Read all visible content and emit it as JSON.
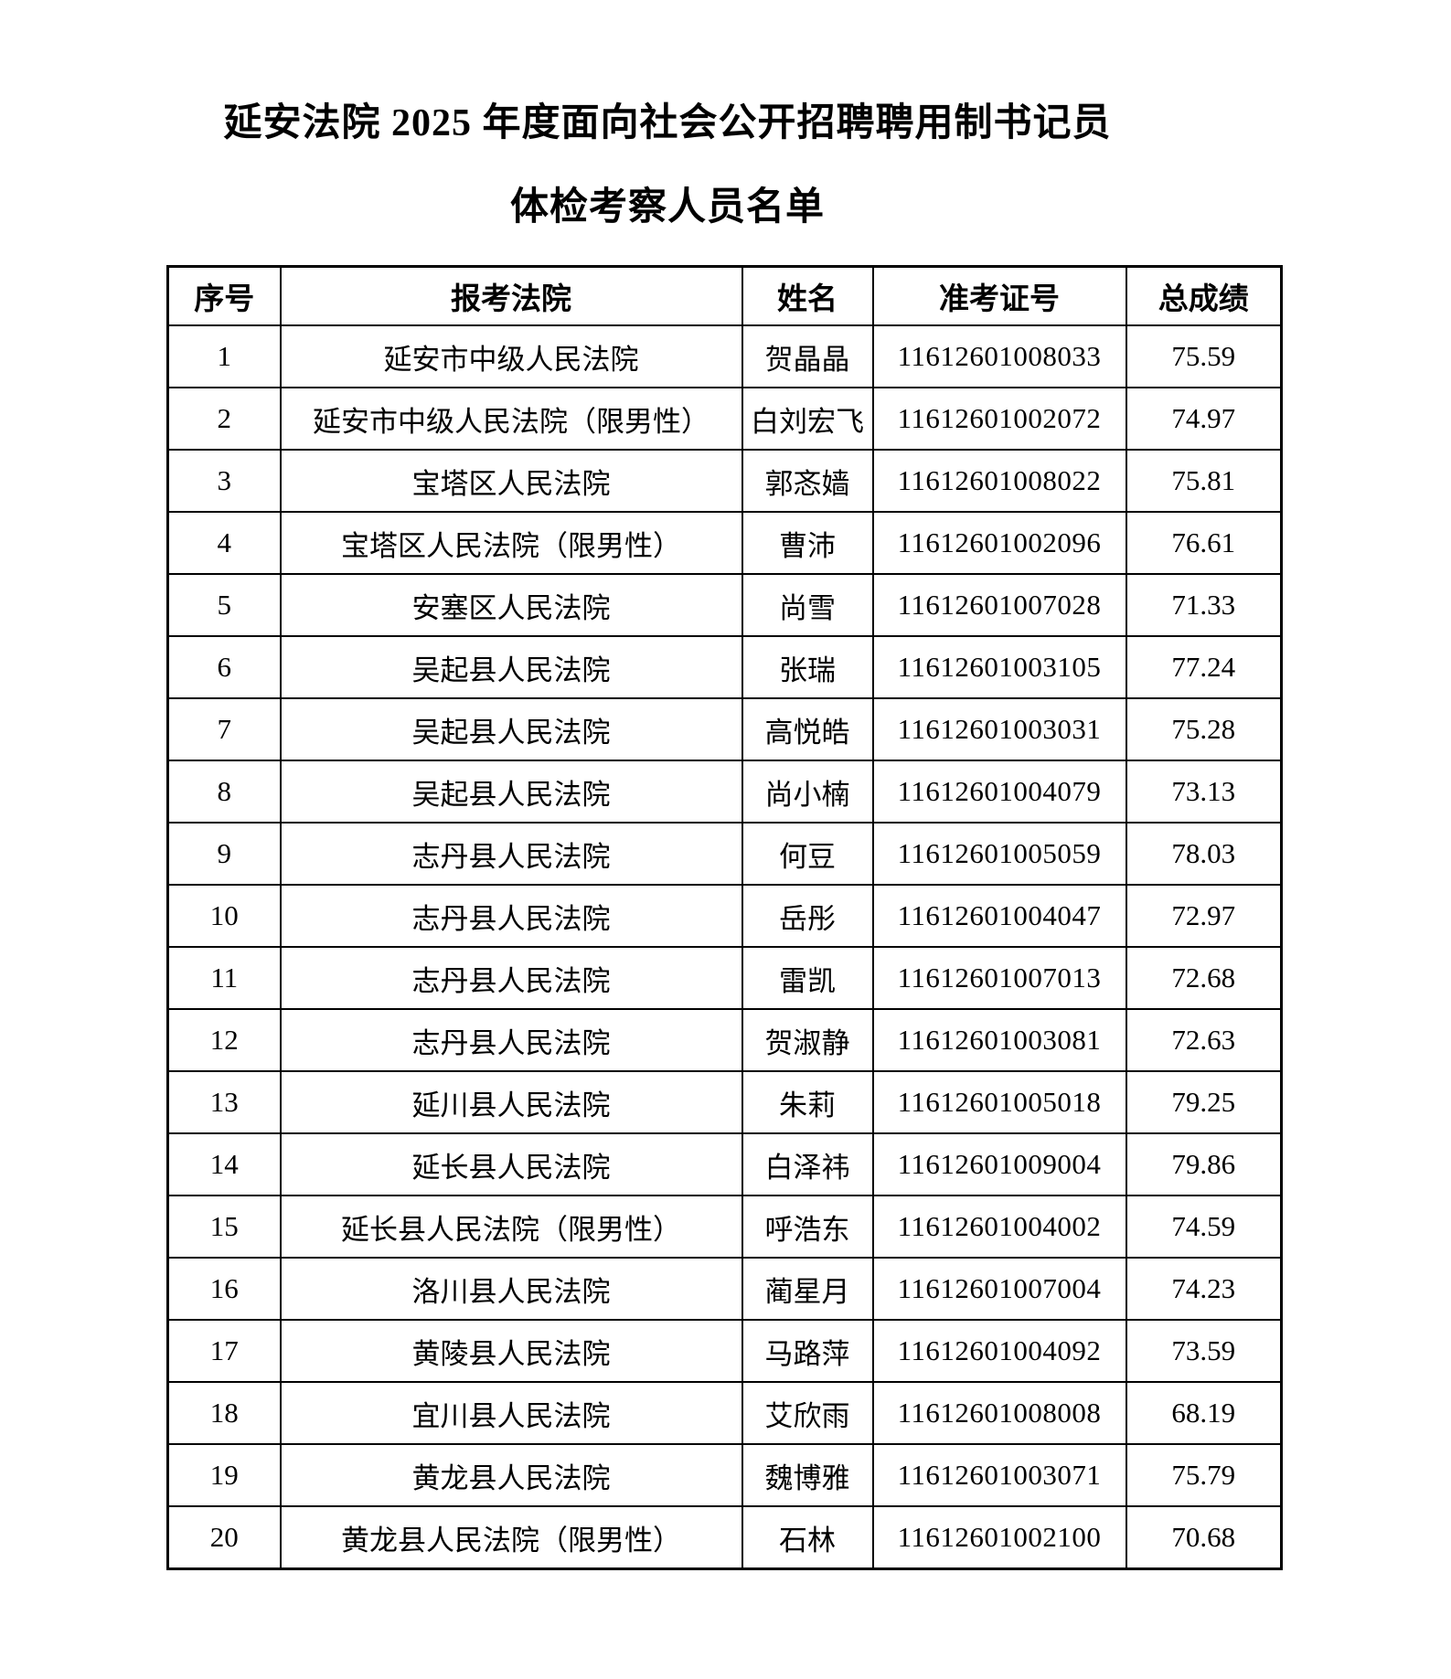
{
  "page": {
    "title_line1": "延安法院 2025 年度面向社会公开招聘聘用制书记员",
    "title_line2": "体检考察人员名单"
  },
  "colors": {
    "text": "#000000",
    "border": "#000000",
    "background": "#ffffff"
  },
  "table": {
    "headers": [
      "序号",
      "报考法院",
      "姓名",
      "准考证号",
      "总成绩"
    ],
    "rows": [
      [
        "1",
        "延安市中级人民法院",
        "贺晶晶",
        "11612601008033",
        "75.59"
      ],
      [
        "2",
        "延安市中级人民法院（限男性）",
        "白刘宏飞",
        "11612601002072",
        "74.97"
      ],
      [
        "3",
        "宝塔区人民法院",
        "郭忞嫱",
        "11612601008022",
        "75.81"
      ],
      [
        "4",
        "宝塔区人民法院（限男性）",
        "曹沛",
        "11612601002096",
        "76.61"
      ],
      [
        "5",
        "安塞区人民法院",
        "尚雪",
        "11612601007028",
        "71.33"
      ],
      [
        "6",
        "吴起县人民法院",
        "张瑞",
        "11612601003105",
        "77.24"
      ],
      [
        "7",
        "吴起县人民法院",
        "高悦皓",
        "11612601003031",
        "75.28"
      ],
      [
        "8",
        "吴起县人民法院",
        "尚小楠",
        "11612601004079",
        "73.13"
      ],
      [
        "9",
        "志丹县人民法院",
        "何豆",
        "11612601005059",
        "78.03"
      ],
      [
        "10",
        "志丹县人民法院",
        "岳彤",
        "11612601004047",
        "72.97"
      ],
      [
        "11",
        "志丹县人民法院",
        "雷凯",
        "11612601007013",
        "72.68"
      ],
      [
        "12",
        "志丹县人民法院",
        "贺淑静",
        "11612601003081",
        "72.63"
      ],
      [
        "13",
        "延川县人民法院",
        "朱莉",
        "11612601005018",
        "79.25"
      ],
      [
        "14",
        "延长县人民法院",
        "白泽祎",
        "11612601009004",
        "79.86"
      ],
      [
        "15",
        "延长县人民法院（限男性）",
        "呼浩东",
        "11612601004002",
        "74.59"
      ],
      [
        "16",
        "洛川县人民法院",
        "蔺星月",
        "11612601007004",
        "74.23"
      ],
      [
        "17",
        "黄陵县人民法院",
        "马路萍",
        "11612601004092",
        "73.59"
      ],
      [
        "18",
        "宜川县人民法院",
        "艾欣雨",
        "11612601008008",
        "68.19"
      ],
      [
        "19",
        "黄龙县人民法院",
        "魏博雅",
        "11612601003071",
        "75.79"
      ],
      [
        "20",
        "黄龙县人民法院（限男性）",
        "石林",
        "11612601002100",
        "70.68"
      ]
    ]
  }
}
